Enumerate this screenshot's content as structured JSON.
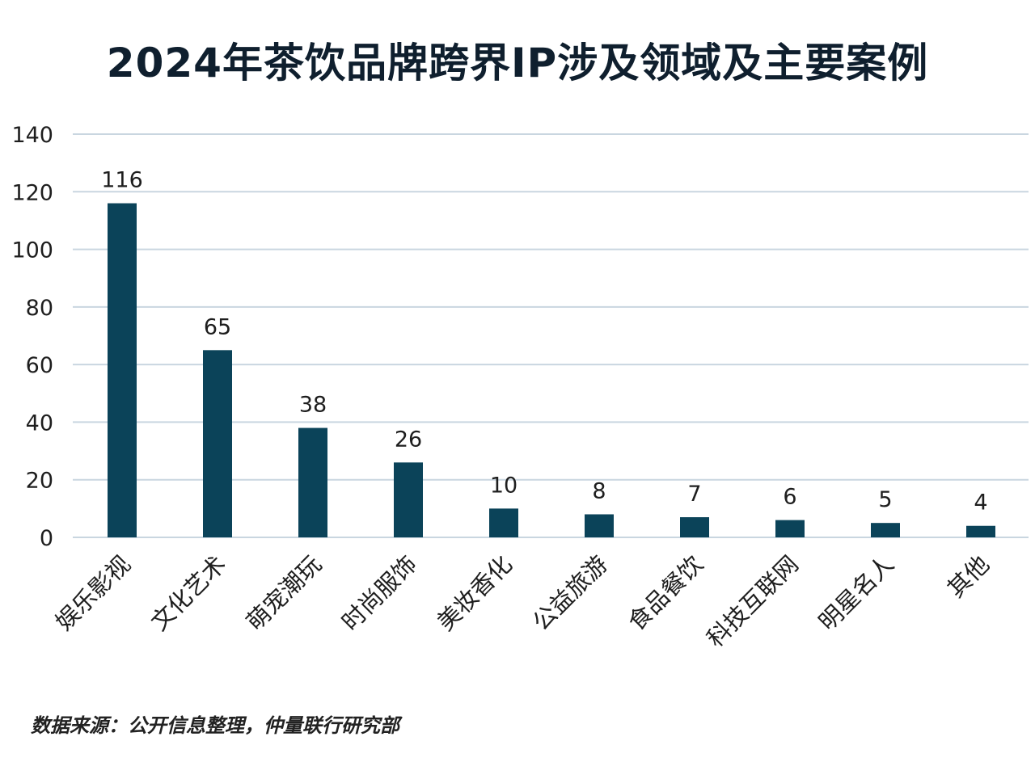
{
  "chart_data": {
    "type": "bar",
    "title": "2024年茶饮品牌跨界IP涉及领域及主要案例",
    "categories": [
      "娱乐影视",
      "文化艺术",
      "萌宠潮玩",
      "时尚服饰",
      "美妆香化",
      "公益旅游",
      "食品餐饮",
      "科技互联网",
      "明星名人",
      "其他"
    ],
    "values": [
      116,
      65,
      38,
      26,
      10,
      8,
      7,
      6,
      5,
      4
    ],
    "ylim": [
      0,
      140
    ],
    "yticks": [
      0,
      20,
      40,
      60,
      80,
      100,
      120,
      140
    ],
    "grid": true,
    "legend": "none",
    "data_labels": true
  },
  "source": "数据来源：公开信息整理，仲量联行研究部",
  "colors": {
    "bar": "#0b4359",
    "grid": "#c9d6e0",
    "text": "#1e1e1e",
    "title": "#0f1f2e"
  }
}
